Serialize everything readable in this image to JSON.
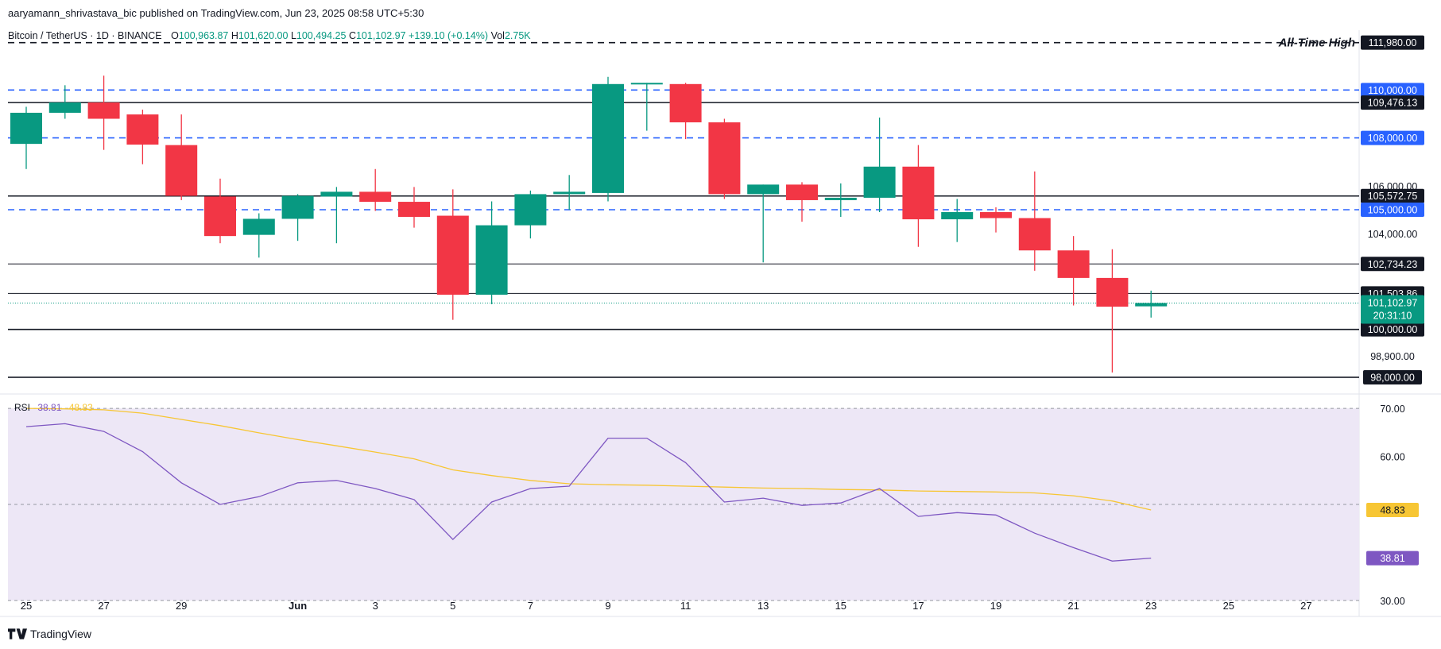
{
  "header": {
    "publisher": "aaryamann_shrivastava_bic published on TradingView.com, Jun 23, 2025 08:58 UTC+5:30"
  },
  "legend": {
    "symbol": "Bitcoin / TetherUS · 1D · BINANCE",
    "o_label": "O",
    "o_value": "100,963.87",
    "h_label": "H",
    "h_value": "101,620.00",
    "l_label": "L",
    "l_value": "100,494.25",
    "c_label": "C",
    "c_value": "101,102.97",
    "change": "+139.10 (+0.14%)",
    "vol_label": "Vol",
    "vol_value": "2.75K"
  },
  "rsi_legend": {
    "label": "RSI",
    "rsi": "38.81",
    "ma": "48.83"
  },
  "brand": {
    "name": "TradingView"
  },
  "colors": {
    "up": "#089981",
    "down": "#f23645",
    "blue": "#2962ff",
    "rsi_line": "#7e57c2",
    "rsi_ma": "#f7c634",
    "rsi_band": "#ede7f6"
  },
  "chart_data": {
    "type": "candlestick",
    "price_scale": {
      "min": 97600,
      "max": 112500,
      "ticks": [
        {
          "value": 106000,
          "label": "106,000.00"
        },
        {
          "value": 104000,
          "label": "104,000.00"
        },
        {
          "value": 98900,
          "label": "98,900.00"
        }
      ]
    },
    "x_labels": [
      {
        "day": 0,
        "label": "25"
      },
      {
        "day": 2,
        "label": "27"
      },
      {
        "day": 4,
        "label": "29"
      },
      {
        "day": 7,
        "label": "Jun"
      },
      {
        "day": 9,
        "label": "3"
      },
      {
        "day": 11,
        "label": "5"
      },
      {
        "day": 13,
        "label": "7"
      },
      {
        "day": 15,
        "label": "9"
      },
      {
        "day": 17,
        "label": "11"
      },
      {
        "day": 19,
        "label": "13"
      },
      {
        "day": 21,
        "label": "15"
      },
      {
        "day": 23,
        "label": "17"
      },
      {
        "day": 25,
        "label": "19"
      },
      {
        "day": 27,
        "label": "21"
      },
      {
        "day": 29,
        "label": "23"
      },
      {
        "day": 31,
        "label": "25"
      },
      {
        "day": 33,
        "label": "27"
      }
    ],
    "candles": [
      {
        "o": 107750,
        "h": 109300,
        "l": 106700,
        "c": 109050
      },
      {
        "o": 109050,
        "h": 110200,
        "l": 108800,
        "c": 109480
      },
      {
        "o": 109480,
        "h": 110600,
        "l": 107500,
        "c": 108800
      },
      {
        "o": 108980,
        "h": 109180,
        "l": 106900,
        "c": 107720
      },
      {
        "o": 107700,
        "h": 108980,
        "l": 105400,
        "c": 105580
      },
      {
        "o": 105550,
        "h": 106300,
        "l": 103600,
        "c": 103900
      },
      {
        "o": 103950,
        "h": 104850,
        "l": 103000,
        "c": 104620
      },
      {
        "o": 104620,
        "h": 105650,
        "l": 103700,
        "c": 105580
      },
      {
        "o": 105550,
        "h": 105950,
        "l": 103600,
        "c": 105750
      },
      {
        "o": 105750,
        "h": 106700,
        "l": 104950,
        "c": 105330
      },
      {
        "o": 105330,
        "h": 105950,
        "l": 104250,
        "c": 104700
      },
      {
        "o": 104750,
        "h": 105850,
        "l": 100400,
        "c": 101450
      },
      {
        "o": 101450,
        "h": 105350,
        "l": 101050,
        "c": 104350
      },
      {
        "o": 104350,
        "h": 105800,
        "l": 103800,
        "c": 105650
      },
      {
        "o": 105650,
        "h": 106450,
        "l": 105000,
        "c": 105750
      },
      {
        "o": 105700,
        "h": 110550,
        "l": 105350,
        "c": 110250
      },
      {
        "o": 110250,
        "h": 110300,
        "l": 108300,
        "c": 110300
      },
      {
        "o": 110250,
        "h": 110300,
        "l": 107950,
        "c": 108650
      },
      {
        "o": 108650,
        "h": 108800,
        "l": 105450,
        "c": 105650
      },
      {
        "o": 105650,
        "h": 106050,
        "l": 102800,
        "c": 106050
      },
      {
        "o": 106050,
        "h": 106150,
        "l": 104500,
        "c": 105400
      },
      {
        "o": 105400,
        "h": 106100,
        "l": 104700,
        "c": 105500
      },
      {
        "o": 105500,
        "h": 108850,
        "l": 104900,
        "c": 106800
      },
      {
        "o": 106800,
        "h": 107700,
        "l": 103450,
        "c": 104600
      },
      {
        "o": 104600,
        "h": 105450,
        "l": 103650,
        "c": 104900
      },
      {
        "o": 104900,
        "h": 105100,
        "l": 104050,
        "c": 104650
      },
      {
        "o": 104650,
        "h": 106600,
        "l": 102450,
        "c": 103300
      },
      {
        "o": 103300,
        "h": 103900,
        "l": 101000,
        "c": 102150
      },
      {
        "o": 102150,
        "h": 103350,
        "l": 98200,
        "c": 100950
      },
      {
        "o": 100964,
        "h": 101620,
        "l": 100494,
        "c": 101103
      }
    ],
    "levels": [
      {
        "value": 111980,
        "label": "111,980.00",
        "style": "dashed",
        "color": "#131722",
        "annotation": "All-Time High"
      },
      {
        "value": 110000,
        "label": "110,000.00",
        "style": "dashed",
        "color": "#2962ff"
      },
      {
        "value": 109476.13,
        "label": "109,476.13",
        "style": "solid",
        "color": "#131722"
      },
      {
        "value": 108000,
        "label": "108,000.00",
        "style": "dashed",
        "color": "#2962ff"
      },
      {
        "value": 105572.75,
        "label": "105,572.75",
        "style": "solid",
        "color": "#131722"
      },
      {
        "value": 105000,
        "label": "105,000.00",
        "style": "dashed",
        "color": "#2962ff"
      },
      {
        "value": 102734.23,
        "label": "102,734.23",
        "style": "solid",
        "color": "#131722"
      },
      {
        "value": 101503.86,
        "label": "101,503.86",
        "style": "solid",
        "color": "#131722"
      },
      {
        "value": 100000,
        "label": "100,000.00",
        "style": "solid",
        "color": "#131722"
      },
      {
        "value": 98000,
        "label": "98,000.00",
        "style": "solid",
        "color": "#131722"
      }
    ],
    "last_price": {
      "value": 101102.97,
      "label": "101,102.97",
      "countdown": "20:31:10"
    },
    "rsi": {
      "scale": {
        "min": 27,
        "max": 72
      },
      "ticks": [
        {
          "value": 70,
          "label": "70.00"
        },
        {
          "value": 60,
          "label": "60.00"
        },
        {
          "value": 30,
          "label": "30.00"
        }
      ],
      "band": [
        30,
        70
      ],
      "midline": 50,
      "values": [
        66.2,
        66.8,
        65.2,
        61.0,
        54.5,
        50.0,
        51.6,
        54.5,
        55.0,
        53.3,
        51.0,
        42.7,
        50.5,
        53.3,
        53.8,
        63.8,
        63.8,
        58.7,
        50.5,
        51.3,
        49.8,
        50.3,
        53.3,
        47.5,
        48.3,
        47.8,
        44.0,
        41.0,
        38.2,
        38.81
      ],
      "ma": [
        70.0,
        69.9,
        69.7,
        69.0,
        67.7,
        66.4,
        64.9,
        63.5,
        62.2,
        60.9,
        59.5,
        57.2,
        56.0,
        55.0,
        54.3,
        54.1,
        54.0,
        53.8,
        53.6,
        53.4,
        53.3,
        53.1,
        53.0,
        52.8,
        52.7,
        52.6,
        52.4,
        51.8,
        50.7,
        48.83
      ],
      "current": {
        "value": 38.81,
        "label": "38.81"
      },
      "ma_current": {
        "value": 48.83,
        "label": "48.83"
      }
    }
  }
}
